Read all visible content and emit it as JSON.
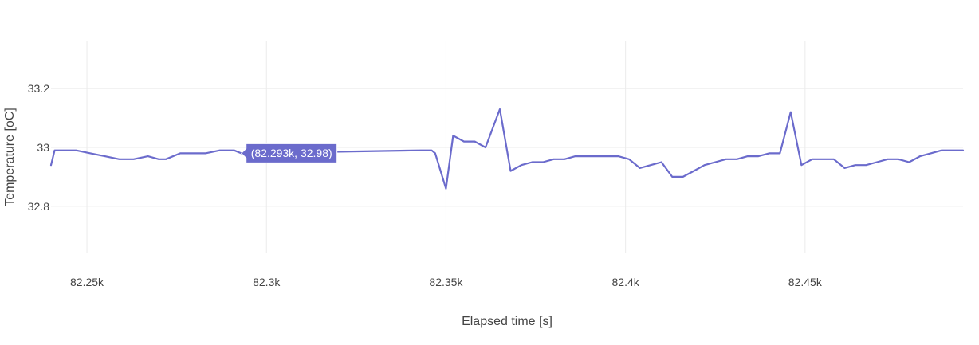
{
  "chart_data": {
    "type": "line",
    "title": "",
    "xlabel": "Elapsed time [s]",
    "ylabel": "Temperature [oC]",
    "xlim": [
      82240,
      82494
    ],
    "ylim": [
      32.64,
      33.36
    ],
    "grid": true,
    "x_ticks": [
      {
        "value": 82250,
        "label": "82.25k"
      },
      {
        "value": 82300,
        "label": "82.3k"
      },
      {
        "value": 82350,
        "label": "82.35k"
      },
      {
        "value": 82400,
        "label": "82.4k"
      },
      {
        "value": 82450,
        "label": "82.45k"
      }
    ],
    "y_ticks": [
      {
        "value": 32.8,
        "label": "32.8"
      },
      {
        "value": 33.0,
        "label": "33"
      },
      {
        "value": 33.2,
        "label": "33.2"
      }
    ],
    "line_color": "#6B6BCC",
    "series": [
      {
        "x": [
          82240,
          82241,
          82247,
          82251,
          82255,
          82259,
          82263,
          82267,
          82270,
          82272,
          82276,
          82279,
          82283,
          82287,
          82291,
          82293,
          82343,
          82346,
          82347,
          82350,
          82352,
          82355,
          82358,
          82361,
          82365,
          82368,
          82371,
          82374,
          82377,
          82380,
          82383,
          82386,
          82389,
          82392,
          82395,
          82398,
          82401,
          82404,
          82407,
          82410,
          82413,
          82416,
          82419,
          82422,
          82425,
          82428,
          82431,
          82434,
          82437,
          82440,
          82443,
          82446,
          82449,
          82452,
          82455,
          82458,
          82461,
          82464,
          82467,
          82470,
          82473,
          82476,
          82479,
          82482,
          82485,
          82488,
          82491,
          82494
        ],
        "y": [
          32.94,
          32.99,
          32.99,
          32.98,
          32.97,
          32.96,
          32.96,
          32.97,
          32.96,
          32.96,
          32.98,
          32.98,
          32.98,
          32.99,
          32.99,
          32.98,
          32.99,
          32.99,
          32.98,
          32.86,
          33.04,
          33.02,
          33.02,
          33.0,
          33.13,
          32.92,
          32.94,
          32.95,
          32.95,
          32.96,
          32.96,
          32.97,
          32.97,
          32.97,
          32.97,
          32.97,
          32.96,
          32.93,
          32.94,
          32.95,
          32.9,
          32.9,
          32.92,
          32.94,
          32.95,
          32.96,
          32.96,
          32.97,
          32.97,
          32.98,
          32.98,
          33.12,
          32.94,
          32.96,
          32.96,
          32.96,
          32.93,
          32.94,
          32.94,
          32.95,
          32.96,
          32.96,
          32.95,
          32.97,
          32.98,
          32.99,
          32.99,
          32.99
        ]
      }
    ],
    "hover": {
      "x": 82293,
      "y": 32.98,
      "text": "(82.293k, 32.98)",
      "color": "#6B6BCC"
    }
  }
}
